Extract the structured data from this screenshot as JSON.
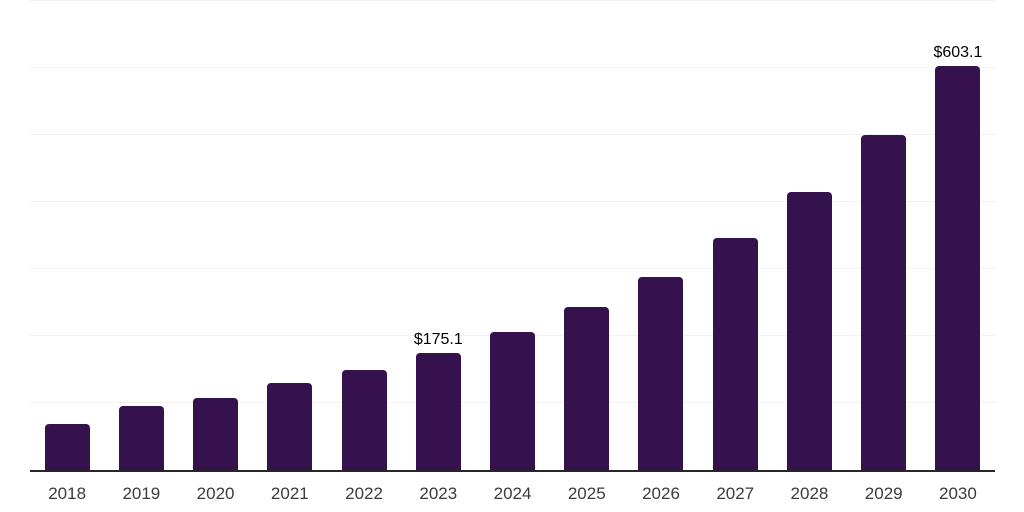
{
  "chart_data": {
    "type": "bar",
    "title": "",
    "xlabel": "",
    "ylabel": "",
    "categories": [
      "2018",
      "2019",
      "2020",
      "2021",
      "2022",
      "2023",
      "2024",
      "2025",
      "2026",
      "2027",
      "2028",
      "2029",
      "2030"
    ],
    "values": [
      68.7,
      95.5,
      107.5,
      129.9,
      149.3,
      175.1,
      206.0,
      243.3,
      288.1,
      346.3,
      414.9,
      500.0,
      603.1
    ],
    "value_labels": [
      {
        "index": 5,
        "text": "$175.1"
      },
      {
        "index": 12,
        "text": "$603.1"
      }
    ],
    "ylim": [
      0,
      700
    ],
    "gridline_values": [
      100,
      200,
      300,
      400,
      500,
      600,
      700
    ],
    "grid_on": true,
    "legend": "none",
    "bar_color": "#35124E",
    "axis_line_color": "#262626",
    "gridline_color": "#f2f2f2",
    "tick_label_color": "#3b3b3b",
    "value_label_color": "#000000"
  }
}
